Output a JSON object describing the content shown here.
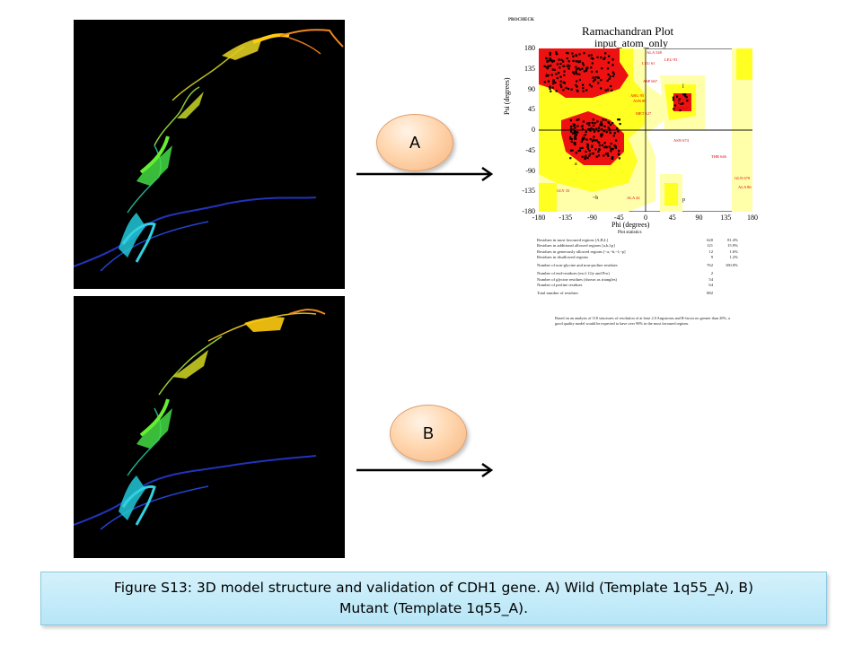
{
  "panel_a": {
    "label": "A"
  },
  "panel_b": {
    "label": "B"
  },
  "ramachandran": {
    "header": "PROCHECK",
    "title": "Ramachandran Plot",
    "subtitle": "input_atom_only",
    "xlabel": "Phi (degrees)",
    "ylabel": "Psi (degrees)",
    "x_ticks": [
      "-180",
      "-135",
      "-90",
      "-45",
      "0",
      "45",
      "90",
      "135",
      "180"
    ],
    "y_ticks": [
      "180",
      "135",
      "90",
      "45",
      "0",
      "-45",
      "-90",
      "-135",
      "-180"
    ],
    "region_labels": [
      "B",
      "b",
      "A",
      "a",
      "L",
      "l",
      "p",
      "~b"
    ],
    "residue_labels": [
      "ALA 548",
      "LEU 61",
      "LEU 93",
      "ASP 667",
      "ARG 95",
      "ASN 86",
      "MET 127",
      "ASN 637",
      "ASN 674",
      "THR 646",
      "GLN 670",
      "ALA 86",
      "GLY 33",
      "ALA 42"
    ],
    "stats_title": "Plot statistics",
    "stats": [
      {
        "label": "Residues in most favoured regions  [A,B,L]",
        "count": "620",
        "pct": "81.4%"
      },
      {
        "label": "Residues in additional allowed regions  [a,b,l,p]",
        "count": "121",
        "pct": "15.9%"
      },
      {
        "label": "Residues in generously allowed regions  [~a,~b,~l,~p]",
        "count": "12",
        "pct": "1.6%"
      },
      {
        "label": "Residues in disallowed regions",
        "count": "9",
        "pct": "1.2%"
      },
      {
        "label": "Number of non-glycine and non-proline residues",
        "count": "762",
        "pct": "100.0%"
      },
      {
        "label": "Number of end-residues (excl. Gly and Pro)",
        "count": "2",
        "pct": ""
      },
      {
        "label": "Number of glycine residues (shown as triangles)",
        "count": "54",
        "pct": ""
      },
      {
        "label": "Number of proline residues",
        "count": "64",
        "pct": ""
      },
      {
        "label": "Total number of residues",
        "count": "882",
        "pct": ""
      }
    ],
    "note": "Based on an analysis of 118 structures of resolution of at least 2.0 Angstroms and R-factor no greater than 20%, a good quality model would be expected to have over 90% in the most favoured regions."
  },
  "caption": {
    "line1": "Figure S13: 3D model structure and validation of CDH1 gene. A) Wild (Template 1q55_A), B)",
    "line2": "Mutant (Template 1q55_A)."
  },
  "colors": {
    "most_favoured": "#ee1111",
    "additional": "#ffff22",
    "generous": "#ffffaa",
    "disallowed": "#ffffff",
    "oval": "#ffd7b0",
    "caption_bg": "#c6ecf9"
  }
}
